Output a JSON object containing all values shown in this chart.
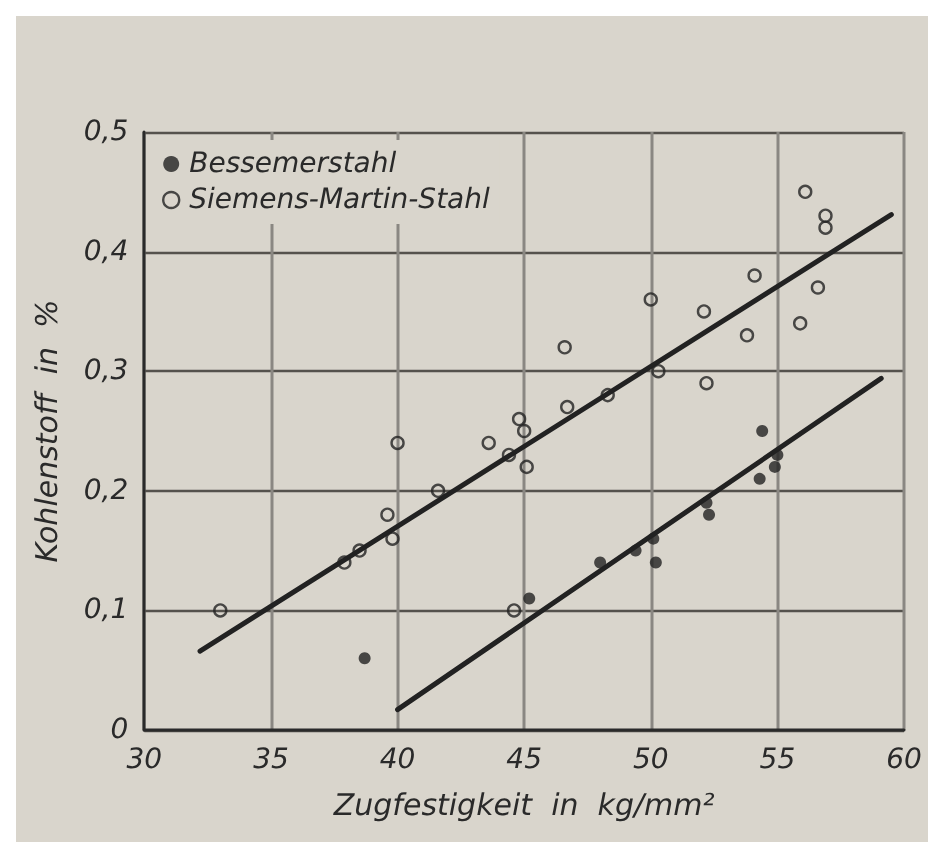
{
  "chart_data": {
    "type": "scatter",
    "xlabel": "Zugfestigkeit  in  kg/mm²",
    "ylabel": "Kohlenstoff  in  %",
    "xlim": [
      30,
      60
    ],
    "xticks": [
      30,
      35,
      40,
      45,
      50,
      55,
      60
    ],
    "ylim": [
      0,
      0.5
    ],
    "yticks": [
      {
        "value": 0,
        "label": "0"
      },
      {
        "value": 0.1,
        "label": "0,1"
      },
      {
        "value": 0.2,
        "label": "0,2"
      },
      {
        "value": 0.3,
        "label": "0,3"
      },
      {
        "value": 0.4,
        "label": "0,4"
      },
      {
        "value": 0.5,
        "label": "0,5"
      }
    ],
    "grid": true,
    "legend": "top left",
    "series": [
      {
        "name": "Bessemerstahl",
        "color": "#222222",
        "marker": "circle",
        "x": [
          38.7,
          45.2,
          48.0,
          49.4,
          50.1,
          50.2,
          52.2,
          52.3,
          54.3,
          54.4,
          54.9,
          55.0
        ],
        "values": [
          0.06,
          0.11,
          0.14,
          0.15,
          0.16,
          0.14,
          0.19,
          0.18,
          0.21,
          0.25,
          0.22,
          0.23
        ]
      },
      {
        "name": "Siemens-Martin-Stahl",
        "color": "#222222",
        "marker": "circle",
        "x": [
          33.0,
          37.9,
          38.5,
          39.6,
          39.8,
          40.0,
          41.6,
          43.6,
          44.4,
          44.6,
          44.8,
          45.0,
          45.1,
          46.6,
          46.7,
          48.3,
          50.0,
          50.3,
          52.1,
          52.2,
          53.8,
          54.1,
          55.9,
          56.1,
          56.6,
          56.9,
          56.9
        ],
        "values": [
          0.1,
          0.14,
          0.15,
          0.18,
          0.16,
          0.24,
          0.2,
          0.24,
          0.23,
          0.1,
          0.26,
          0.25,
          0.22,
          0.32,
          0.27,
          0.28,
          0.36,
          0.3,
          0.35,
          0.29,
          0.33,
          0.38,
          0.34,
          0.45,
          0.37,
          0.43,
          0.42
        ]
      },
      {
        "type": "line",
        "color": "#222222",
        "marker": "none",
        "x": [
          32.2,
          59.5
        ],
        "values": [
          0.066,
          0.431
        ]
      },
      {
        "type": "line",
        "color": "#222222",
        "marker": "none",
        "x": [
          40.0,
          59.1
        ],
        "values": [
          0.017,
          0.294
        ]
      }
    ]
  }
}
